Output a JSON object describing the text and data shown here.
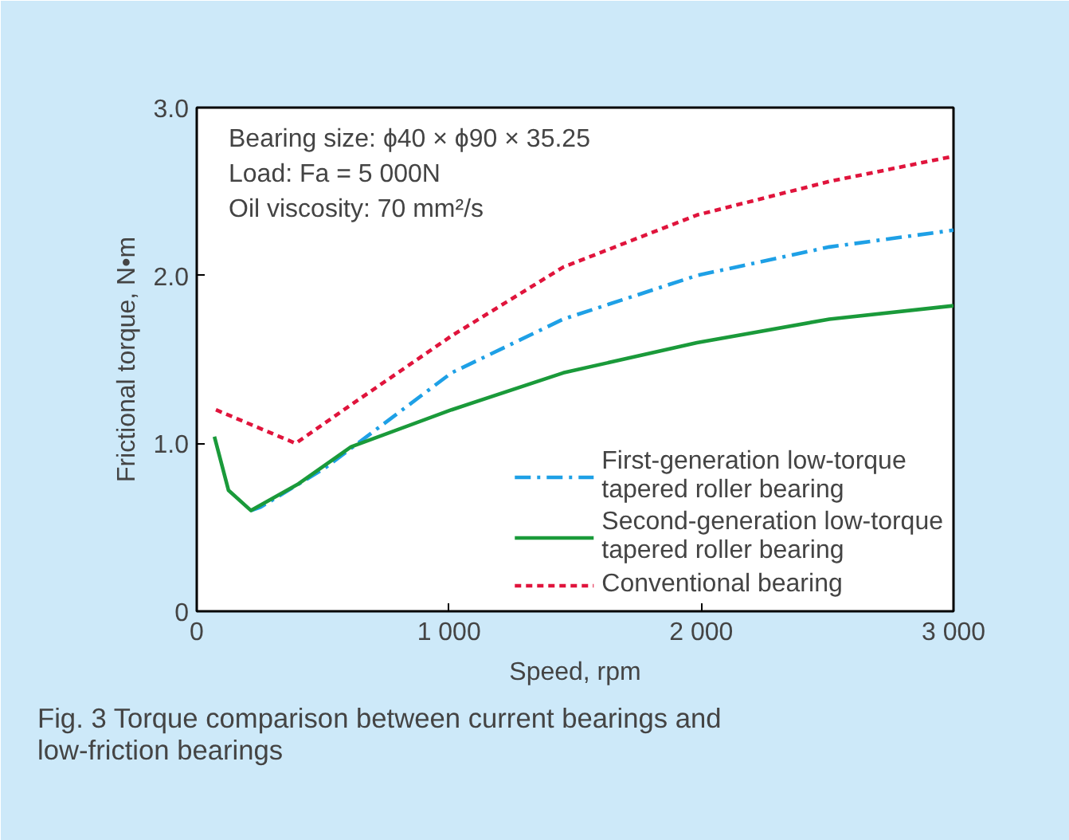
{
  "chart_data": {
    "type": "line",
    "xlabel": "Speed, rpm",
    "ylabel": "Frictional torque, N•m",
    "xlim": [
      0,
      3000
    ],
    "ylim": [
      0,
      3.0
    ],
    "xticks": [
      0,
      {
        "value": 1000,
        "label": "1 000"
      },
      {
        "value": 2000,
        "label": "2 000"
      },
      {
        "value": 3000,
        "label": "3 000"
      }
    ],
    "yticks": [
      0,
      {
        "value": 1,
        "label": "1.0"
      },
      {
        "value": 2,
        "label": "2.0"
      },
      {
        "value": 3,
        "label": "3.0"
      }
    ],
    "grid": false,
    "legend": "bottom right",
    "series": [
      {
        "name": "First-generation low-torque tapered roller bearing",
        "color": "#1ea0e6",
        "line_style": "dashdot",
        "x": [
          215,
          253,
          505,
          1010,
          1453,
          1983,
          2508,
          3000
        ],
        "values": [
          0.6,
          0.62,
          0.85,
          1.42,
          1.74,
          2.0,
          2.17,
          2.27
        ]
      },
      {
        "name": "Second-generation low-torque tapered roller bearing",
        "color": "#1a9a3a",
        "line_style": "solid",
        "x": [
          70,
          126,
          215,
          404,
          612,
          1010,
          1453,
          1983,
          2508,
          3000
        ],
        "values": [
          1.04,
          0.72,
          0.6,
          0.76,
          0.98,
          1.2,
          1.42,
          1.6,
          1.74,
          1.82
        ]
      },
      {
        "name": "Conventional bearing",
        "color": "#e0143c",
        "line_style": "dotted",
        "x": [
          76,
          392,
          612,
          1010,
          1453,
          1983,
          2508,
          3000
        ],
        "values": [
          1.2,
          1.0,
          1.23,
          1.64,
          2.05,
          2.36,
          2.56,
          2.71
        ]
      }
    ],
    "annotations": [
      "Bearing size: ϕ40 × ϕ90 × 35.25",
      "Load: Fa = 5 000N",
      "Oil viscosity: 70 mm²/s",
      "Fig. 3  Torque comparison between current bearings and\n       low-friction bearings"
    ]
  }
}
